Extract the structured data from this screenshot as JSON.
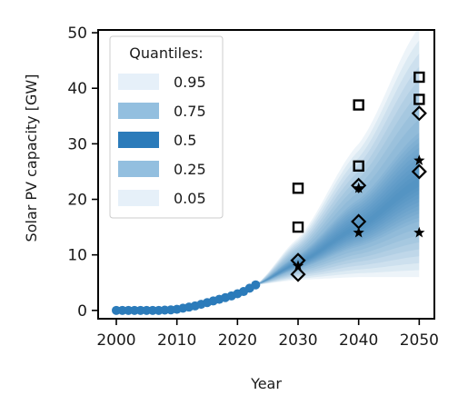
{
  "chart_data": {
    "type": "scatter",
    "xlabel": "Year",
    "ylabel": "Solar PV capacity [GW]",
    "xlim": [
      1997,
      2052.5
    ],
    "ylim": [
      -1.5,
      50.5
    ],
    "x_ticks": [
      2000,
      2010,
      2020,
      2030,
      2040,
      2050
    ],
    "y_ticks": [
      0,
      10,
      20,
      30,
      40,
      50
    ],
    "grid": false,
    "legend": {
      "title": "Quantiles:",
      "placement": "top-left",
      "entries": [
        {
          "label": "0.95",
          "color": "#e6f0f9"
        },
        {
          "label": "0.75",
          "color": "#93bfdf"
        },
        {
          "label": "0.5",
          "color": "#2b7bba"
        },
        {
          "label": "0.25",
          "color": "#93bfdf"
        },
        {
          "label": "0.05",
          "color": "#e6f0f9"
        }
      ]
    },
    "historical": {
      "color": "#2b7bba",
      "x": [
        2000,
        2001,
        2002,
        2003,
        2004,
        2005,
        2006,
        2007,
        2008,
        2009,
        2010,
        2011,
        2012,
        2013,
        2014,
        2015,
        2016,
        2017,
        2018,
        2019,
        2020,
        2021,
        2022,
        2023
      ],
      "y": [
        0,
        0,
        0,
        0,
        0,
        0,
        0,
        0,
        0.05,
        0.1,
        0.2,
        0.4,
        0.6,
        0.8,
        1.1,
        1.4,
        1.7,
        2.0,
        2.3,
        2.6,
        3.0,
        3.4,
        4.0,
        4.6
      ]
    },
    "projection_fan": {
      "color": "#2b7bba",
      "x": [
        2023,
        2030,
        2040,
        2050
      ],
      "q05": [
        4.6,
        5.5,
        6.0,
        6.0
      ],
      "q25": [
        4.6,
        7.5,
        11.5,
        16.0
      ],
      "q50": [
        4.6,
        8.5,
        15.0,
        23.0
      ],
      "q75": [
        4.6,
        10.0,
        20.0,
        32.0
      ],
      "q95": [
        4.6,
        13.0,
        30.0,
        51.0
      ]
    },
    "scenarios": [
      {
        "marker": "square",
        "x": [
          2030,
          2030,
          2040,
          2040,
          2050,
          2050
        ],
        "y": [
          22,
          15,
          37,
          26,
          42,
          38
        ]
      },
      {
        "marker": "diamond",
        "x": [
          2030,
          2030,
          2040,
          2040,
          2050,
          2050
        ],
        "y": [
          9,
          6.5,
          22.5,
          16,
          35.5,
          25
        ]
      },
      {
        "marker": "star",
        "x": [
          2030,
          2040,
          2040,
          2050,
          2050
        ],
        "y": [
          8,
          22,
          14,
          27,
          14
        ]
      }
    ]
  }
}
